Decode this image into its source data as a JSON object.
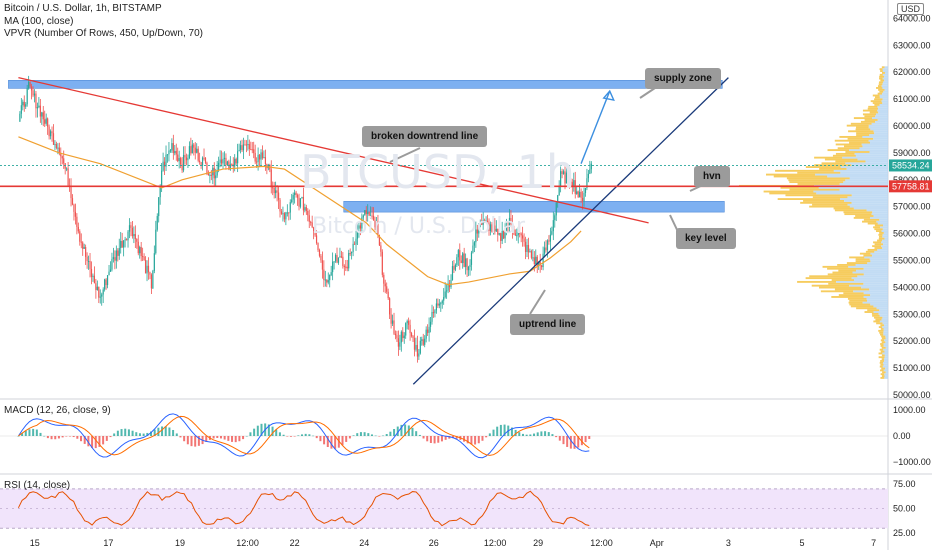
{
  "header": {
    "symbol_line": "Bitcoin / U.S. Dollar, 1h, BITSTAMP",
    "ma_line": "MA (100, close)",
    "vpvr_line": "VPVR (Number Of Rows, 450, Up/Down, 70)",
    "currency_button": "USD"
  },
  "watermark": {
    "ticker": "BTCUSD, 1h",
    "name": "Bitcoin / U.S. Dollar"
  },
  "panes": {
    "macd_label": "MACD (12, 26, close, 9)",
    "rsi_label": "RSI (14, close)"
  },
  "annotations": {
    "supply_zone": "supply zone",
    "broken_downtrend": "broken downtrend line",
    "hvn": "hvn",
    "key_level": "key level",
    "uptrend_line": "uptrend line"
  },
  "colors": {
    "up": "#26a69a",
    "down": "#ef5350",
    "ma": "#f0a030",
    "zone": "#6fa8f0",
    "downtrend": "#e53935",
    "uptrend": "#1a3a7a",
    "arrow": "#3c8fe0",
    "macd": "#2962ff",
    "signal": "#ff6d00",
    "rsi": "#e65100",
    "rsi_band": "#f1e4fb",
    "vp_up": "#b7d6f2",
    "vp_down": "#f5c342"
  },
  "chart_data": {
    "type": "candlestick",
    "price": {
      "ylim": [
        50000,
        64500
      ],
      "tick_labels": [
        "64000.00",
        "63000.00",
        "62000.00",
        "61000.00",
        "60000.00",
        "59000.00",
        "58000.00",
        "57000.00",
        "56000.00",
        "55000.00",
        "54000.00",
        "53000.00",
        "52000.00",
        "51000.00",
        "50000.00"
      ],
      "tick_values": [
        64000,
        63000,
        62000,
        61000,
        60000,
        59000,
        58000,
        57000,
        56000,
        55000,
        54000,
        53000,
        52000,
        51000,
        50000
      ],
      "last_price": "58534.24",
      "marked_level": "57758.81",
      "last_price_value": 58534.24,
      "marked_level_value": 57758.81,
      "supply_zone": [
        61400,
        61700
      ],
      "key_level_zone": [
        56800,
        57200
      ],
      "downtrend_line": [
        {
          "x": 0.0,
          "y": 61800
        },
        {
          "x": 30.8,
          "y": 56400
        }
      ],
      "uptrend_line": [
        {
          "x": 19.3,
          "y": 50400
        },
        {
          "x": 34.7,
          "y": 61800
        }
      ],
      "projection_arrow": [
        {
          "x": 27.5,
          "y": 58600
        },
        {
          "x": 28.9,
          "y": 61300
        }
      ],
      "path": [
        [
          0,
          60200
        ],
        [
          0.5,
          61400
        ],
        [
          1,
          60700
        ],
        [
          1.5,
          59800
        ],
        [
          2,
          59200
        ],
        [
          2.5,
          57800
        ],
        [
          3,
          55900
        ],
        [
          3.5,
          54600
        ],
        [
          4,
          53600
        ],
        [
          4.5,
          54800
        ],
        [
          5,
          55600
        ],
        [
          5.5,
          56300
        ],
        [
          6,
          55200
        ],
        [
          6.5,
          54100
        ],
        [
          7,
          58400
        ],
        [
          7.5,
          59300
        ],
        [
          8,
          58600
        ],
        [
          8.5,
          59200
        ],
        [
          9,
          58700
        ],
        [
          9.5,
          58200
        ],
        [
          10,
          58900
        ],
        [
          10.5,
          58400
        ],
        [
          11,
          59500
        ],
        [
          11.5,
          58800
        ],
        [
          12,
          58900
        ],
        [
          12.5,
          57600
        ],
        [
          13,
          56500
        ],
        [
          13.5,
          57400
        ],
        [
          14,
          57000
        ],
        [
          14.5,
          56100
        ],
        [
          15,
          54200
        ],
        [
          15.5,
          55200
        ],
        [
          16,
          54700
        ],
        [
          16.5,
          56000
        ],
        [
          17,
          56800
        ],
        [
          17.5,
          56200
        ],
        [
          18,
          53600
        ],
        [
          18.5,
          51900
        ],
        [
          19,
          52600
        ],
        [
          19.5,
          51600
        ],
        [
          20,
          52500
        ],
        [
          20.5,
          53400
        ],
        [
          21,
          54100
        ],
        [
          21.5,
          55200
        ],
        [
          22,
          54800
        ],
        [
          22.5,
          56400
        ],
        [
          23,
          56300
        ],
        [
          23.5,
          55800
        ],
        [
          24,
          56400
        ],
        [
          24.5,
          55900
        ],
        [
          25,
          55200
        ],
        [
          25.5,
          54800
        ],
        [
          26,
          55900
        ],
        [
          26.5,
          58100
        ],
        [
          27,
          58100
        ],
        [
          27.5,
          57200
        ],
        [
          28,
          58600
        ]
      ],
      "ma_path": [
        [
          0,
          59600
        ],
        [
          2,
          59000
        ],
        [
          4,
          58600
        ],
        [
          6,
          58000
        ],
        [
          7,
          57700
        ],
        [
          8,
          58000
        ],
        [
          10,
          58400
        ],
        [
          12,
          58500
        ],
        [
          13,
          58400
        ],
        [
          15,
          57400
        ],
        [
          17,
          56400
        ],
        [
          18,
          55600
        ],
        [
          19,
          55000
        ],
        [
          20,
          54400
        ],
        [
          21,
          54100
        ],
        [
          22,
          54200
        ],
        [
          24,
          54500
        ],
        [
          25,
          54600
        ],
        [
          26,
          55100
        ],
        [
          27,
          55700
        ],
        [
          27.5,
          56100
        ]
      ]
    },
    "x_axis": {
      "xlim": [
        -0.9,
        42.5
      ],
      "tick_labels": [
        "15",
        "17",
        "19",
        "12:00",
        "22",
        "24",
        "26",
        "12:00",
        "29",
        "12:00",
        "Apr",
        "3",
        "5",
        "7"
      ],
      "tick_values": [
        0.8,
        4.4,
        7.9,
        11.2,
        13.5,
        16.9,
        20.3,
        23.3,
        25.4,
        28.5,
        31.2,
        34.7,
        38.3,
        41.8
      ]
    },
    "macd": {
      "ylim": [
        -1300,
        1300
      ],
      "tick_labels": [
        "1000.00",
        "0.00",
        "−1000.00"
      ],
      "tick_values": [
        1000,
        0,
        -1000
      ]
    },
    "rsi": {
      "ylim": [
        18,
        82
      ],
      "tick_labels": [
        "75.00",
        "50.00",
        "25.00"
      ],
      "tick_values": [
        75,
        50,
        25
      ],
      "band": [
        30,
        70
      ]
    }
  }
}
